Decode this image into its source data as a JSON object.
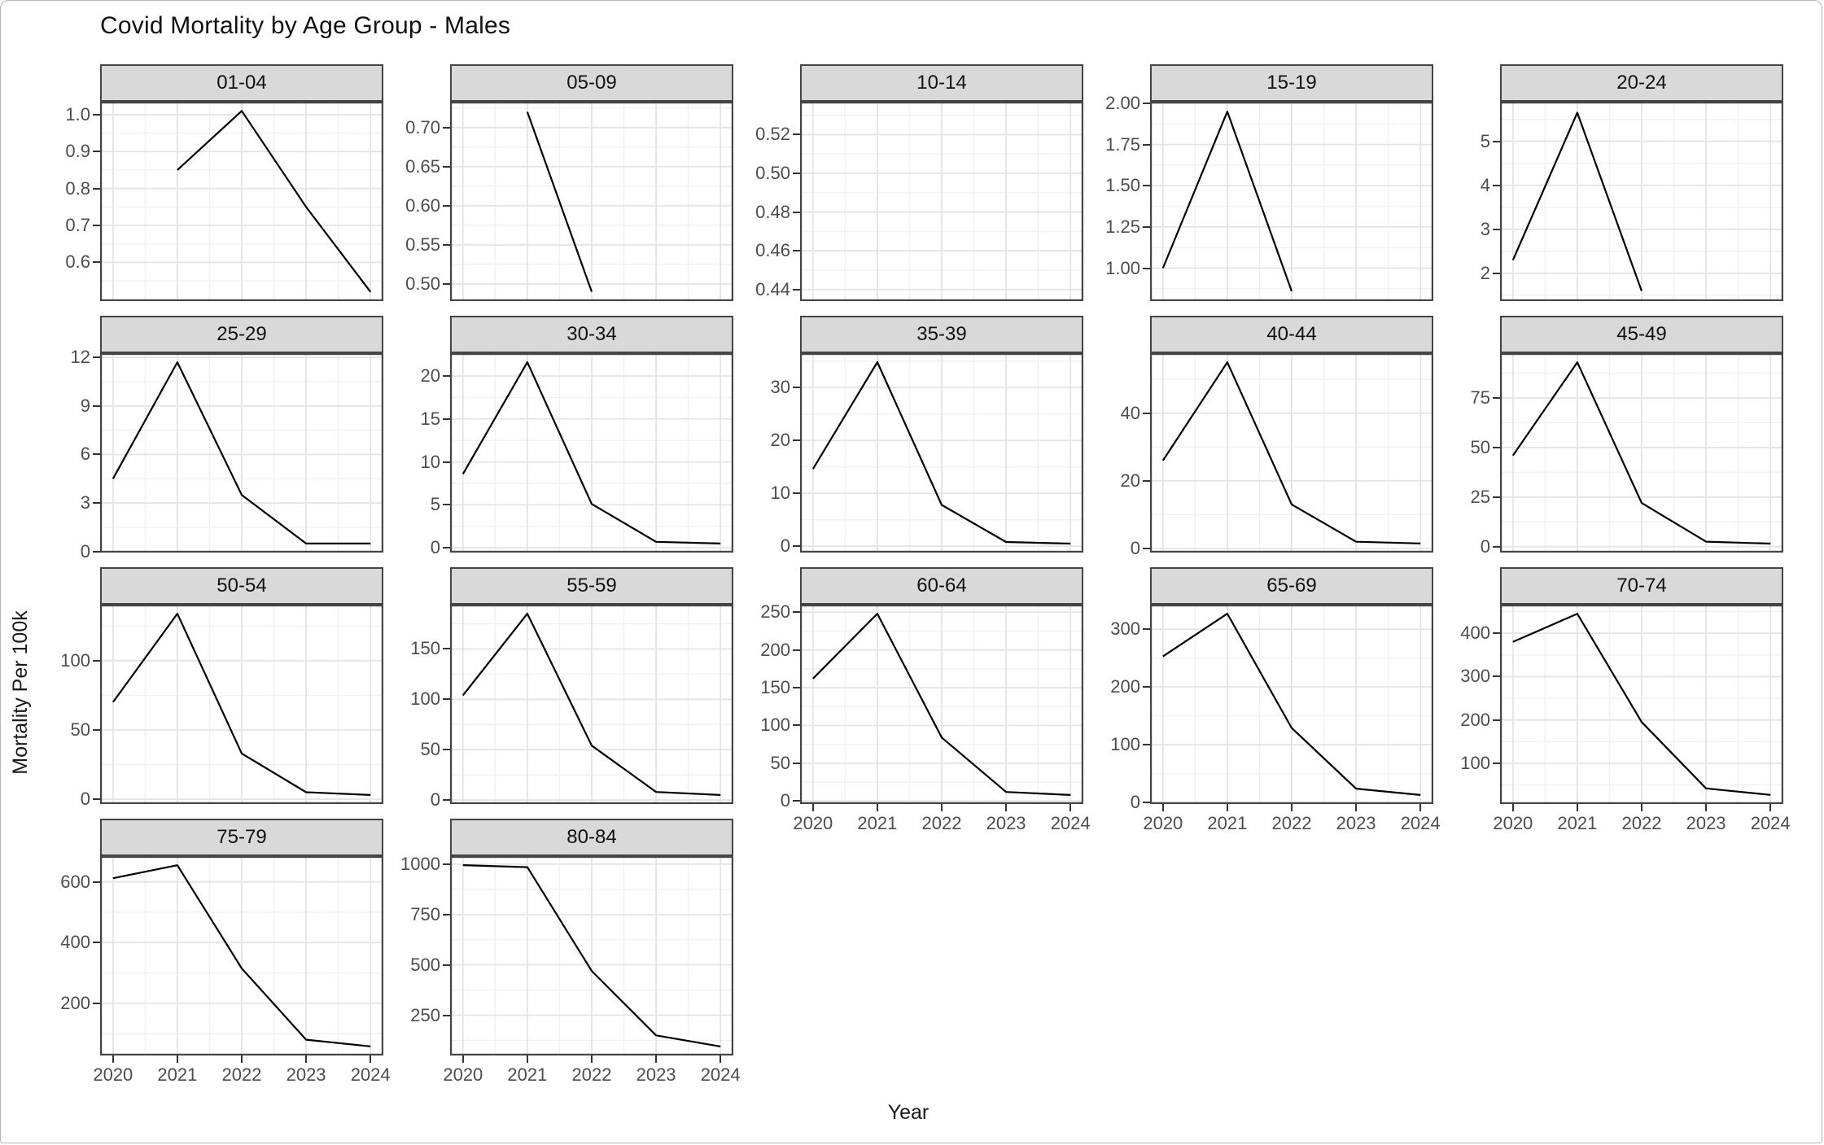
{
  "chart_data": {
    "type": "line",
    "title": "Covid Mortality by Age Group - Males",
    "xlabel": "Year",
    "ylabel": "Mortality Per 100k",
    "x": [
      2020,
      2021,
      2022,
      2023,
      2024
    ],
    "x_tick_labels": [
      "2020",
      "2021",
      "2022",
      "2023",
      "2024"
    ],
    "xlim": [
      2019.8,
      2024.2
    ],
    "grid": true,
    "legend": "none",
    "line_color": "#000000",
    "facets": [
      {
        "label": "01-04",
        "values": [
          null,
          0.85,
          1.01,
          0.75,
          0.52
        ],
        "y_ticks": [
          0.6,
          0.7,
          0.8,
          0.9,
          1.0
        ],
        "y_tick_labels": [
          "0.6",
          "0.7",
          "0.8",
          "0.9",
          "1.0"
        ],
        "ylim": [
          0.495,
          1.035
        ]
      },
      {
        "label": "05-09",
        "values": [
          null,
          0.72,
          0.49,
          null,
          null
        ],
        "y_ticks": [
          0.5,
          0.55,
          0.6,
          0.65,
          0.7
        ],
        "y_tick_labels": [
          "0.50",
          "0.55",
          "0.60",
          "0.65",
          "0.70"
        ],
        "ylim": [
          0.478,
          0.733
        ]
      },
      {
        "label": "10-14",
        "values": [
          null,
          null,
          null,
          null,
          null
        ],
        "y_ticks": [
          0.44,
          0.46,
          0.48,
          0.5,
          0.52
        ],
        "y_tick_labels": [
          "0.44",
          "0.46",
          "0.48",
          "0.50",
          "0.52"
        ],
        "ylim": [
          0.434,
          0.537
        ]
      },
      {
        "label": "15-19",
        "values": [
          1.0,
          1.95,
          0.86,
          null,
          null
        ],
        "y_ticks": [
          1.0,
          1.25,
          1.5,
          1.75,
          2.0
        ],
        "y_tick_labels": [
          "1.00",
          "1.25",
          "1.50",
          "1.75",
          "2.00"
        ],
        "ylim": [
          0.8,
          2.01
        ]
      },
      {
        "label": "20-24",
        "values": [
          2.3,
          5.65,
          1.6,
          null,
          null
        ],
        "y_ticks": [
          2,
          3,
          4,
          5
        ],
        "y_tick_labels": [
          "2",
          "3",
          "4",
          "5"
        ],
        "ylim": [
          1.37,
          5.9
        ]
      },
      {
        "label": "25-29",
        "values": [
          4.5,
          11.7,
          3.5,
          0.5,
          0.5
        ],
        "y_ticks": [
          0,
          3,
          6,
          9,
          12
        ],
        "y_tick_labels": [
          "0",
          "3",
          "6",
          "9",
          "12"
        ],
        "ylim": [
          -0.06,
          12.26
        ]
      },
      {
        "label": "30-34",
        "values": [
          8.6,
          21.6,
          5.1,
          0.7,
          0.5
        ],
        "y_ticks": [
          0,
          5,
          10,
          15,
          20
        ],
        "y_tick_labels": [
          "0",
          "5",
          "10",
          "15",
          "20"
        ],
        "ylim": [
          -0.55,
          22.65
        ]
      },
      {
        "label": "35-39",
        "values": [
          14.6,
          34.8,
          7.8,
          0.8,
          0.5
        ],
        "y_ticks": [
          0,
          10,
          20,
          30
        ],
        "y_tick_labels": [
          "0",
          "10",
          "20",
          "30"
        ],
        "ylim": [
          -1.2,
          36.5
        ]
      },
      {
        "label": "40-44",
        "values": [
          26,
          55,
          13,
          2,
          1.5
        ],
        "y_ticks": [
          0,
          20,
          40
        ],
        "y_tick_labels": [
          "0",
          "20",
          "40"
        ],
        "ylim": [
          -1.2,
          57.7
        ]
      },
      {
        "label": "45-49",
        "values": [
          46,
          93,
          22,
          2.5,
          1.5
        ],
        "y_ticks": [
          0,
          25,
          50,
          75
        ],
        "y_tick_labels": [
          "0",
          "25",
          "50",
          "75"
        ],
        "ylim": [
          -3.0,
          97.6
        ]
      },
      {
        "label": "50-54",
        "values": [
          70,
          134,
          33,
          5,
          3
        ],
        "y_ticks": [
          0,
          50,
          100
        ],
        "y_tick_labels": [
          "0",
          "50",
          "100"
        ],
        "ylim": [
          -3.5,
          140.5
        ]
      },
      {
        "label": "55-59",
        "values": [
          104,
          185,
          54,
          8,
          5
        ],
        "y_ticks": [
          0,
          50,
          100,
          150
        ],
        "y_tick_labels": [
          "0",
          "50",
          "100",
          "150"
        ],
        "ylim": [
          -4,
          194
        ]
      },
      {
        "label": "60-64",
        "values": [
          162,
          248,
          84,
          12,
          8
        ],
        "y_ticks": [
          0,
          50,
          100,
          150,
          200,
          250
        ],
        "y_tick_labels": [
          "0",
          "50",
          "100",
          "150",
          "200",
          "250"
        ],
        "ylim": [
          -4,
          260
        ]
      },
      {
        "label": "65-69",
        "values": [
          253,
          327,
          129,
          24,
          13
        ],
        "y_ticks": [
          0,
          100,
          200,
          300
        ],
        "y_tick_labels": [
          "0",
          "100",
          "200",
          "300"
        ],
        "ylim": [
          -2.7,
          342.7
        ]
      },
      {
        "label": "70-74",
        "values": [
          380,
          445,
          195,
          42,
          27
        ],
        "y_ticks": [
          100,
          200,
          300,
          400
        ],
        "y_tick_labels": [
          "100",
          "200",
          "300",
          "400"
        ],
        "ylim": [
          6,
          466
        ]
      },
      {
        "label": "75-79",
        "values": [
          612,
          655,
          315,
          80,
          58
        ],
        "y_ticks": [
          200,
          400,
          600
        ],
        "y_tick_labels": [
          "200",
          "400",
          "600"
        ],
        "ylim": [
          28,
          685
        ]
      },
      {
        "label": "80-84",
        "values": [
          995,
          985,
          470,
          150,
          95
        ],
        "y_ticks": [
          250,
          500,
          750,
          1000
        ],
        "y_tick_labels": [
          "250",
          "500",
          "750",
          "1000"
        ],
        "ylim": [
          50,
          1040
        ]
      }
    ]
  },
  "colors": {
    "strip_fill": "#d9d9d9",
    "panel_border": "#454545",
    "grid_major": "#e4e4e4",
    "grid_minor": "#f1f1f1",
    "line": "#000000",
    "tick_text": "#4d4d4d",
    "tick_mark": "#333333"
  }
}
